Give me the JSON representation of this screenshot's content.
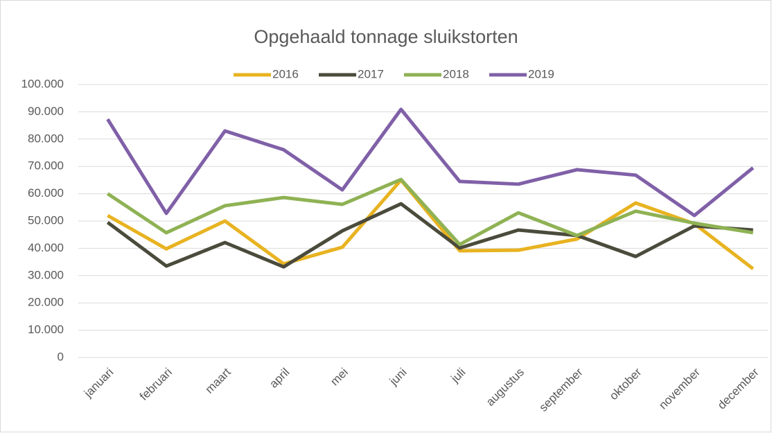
{
  "chart_data": {
    "type": "line",
    "title": "Opgehaald tonnage sluikstorten",
    "categories": [
      "januari",
      "februari",
      "maart",
      "april",
      "mei",
      "juni",
      "juli",
      "augustus",
      "september",
      "oktober",
      "november",
      "december"
    ],
    "series": [
      {
        "name": "2016",
        "color": "#e8b321",
        "values": [
          52000,
          39800,
          50000,
          34300,
          40400,
          65000,
          39100,
          39300,
          43400,
          56600,
          49000,
          32500
        ]
      },
      {
        "name": "2017",
        "color": "#4b4b3c",
        "values": [
          49500,
          33500,
          42100,
          33200,
          46400,
          56300,
          40100,
          46700,
          44700,
          37000,
          48200,
          46700
        ]
      },
      {
        "name": "2018",
        "color": "#8fb254",
        "values": [
          60000,
          45700,
          55600,
          58600,
          56100,
          65200,
          41400,
          53000,
          44700,
          53600,
          49200,
          45700
        ]
      },
      {
        "name": "2019",
        "color": "#8060a8",
        "values": [
          87300,
          52800,
          83000,
          76100,
          61400,
          90900,
          64500,
          63500,
          68800,
          66800,
          52000,
          69500
        ]
      }
    ],
    "ylim": [
      0,
      100000
    ],
    "yticks": [
      0,
      {
        "value": 10000,
        "label": "10.000"
      },
      {
        "value": 20000,
        "label": "20.000"
      },
      {
        "value": 30000,
        "label": "30.000"
      },
      {
        "value": 40000,
        "label": "40.000"
      },
      {
        "value": 50000,
        "label": "50.000"
      },
      {
        "value": 60000,
        "label": "60.000"
      },
      {
        "value": 70000,
        "label": "70.000"
      },
      {
        "value": 80000,
        "label": "80.000"
      },
      {
        "value": 90000,
        "label": "90.000"
      },
      {
        "value": 100000,
        "label": "100.000"
      }
    ],
    "grid": true,
    "legend": "top"
  }
}
